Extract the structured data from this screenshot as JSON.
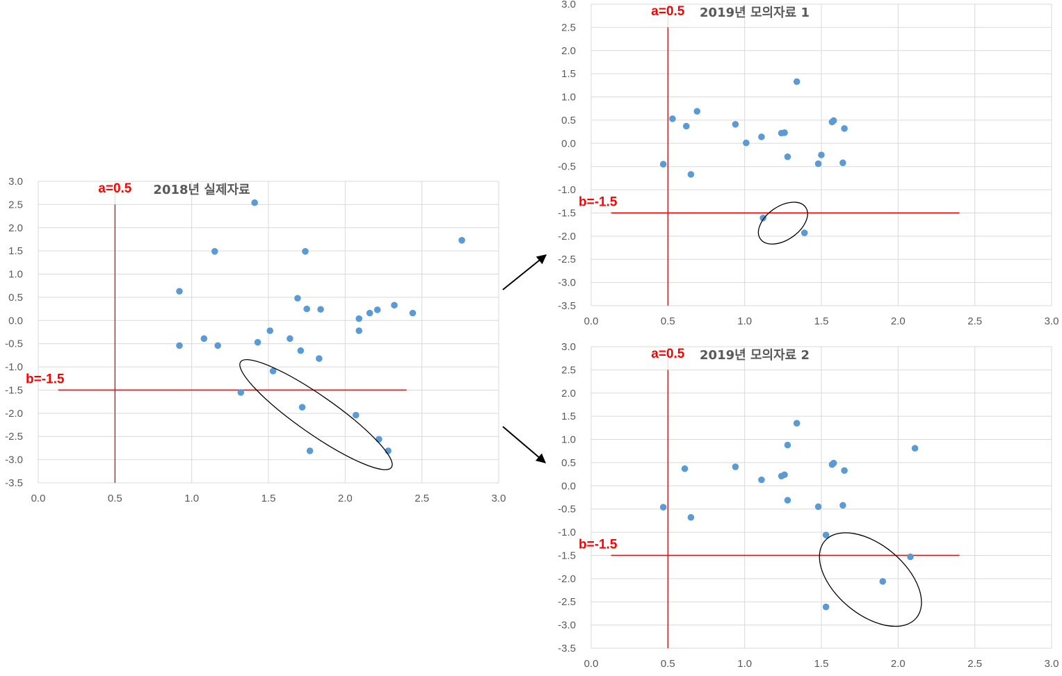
{
  "chart_data": [
    {
      "id": "c2018",
      "type": "scatter",
      "title": "2018년 실제자료",
      "xlim": [
        0,
        3
      ],
      "ylim": [
        -3.5,
        3
      ],
      "xticks": [
        "0.0",
        "0.5",
        "1.0",
        "1.5",
        "2.0",
        "2.5",
        "3.0"
      ],
      "yticks": [
        "3.0",
        "2.5",
        "2.0",
        "1.5",
        "1.0",
        "0.5",
        "0.0",
        "-0.5",
        "-1.0",
        "-1.5",
        "-2.0",
        "-2.5",
        "-3.0",
        "-3.5"
      ],
      "ref_a": {
        "label": "a=0.5",
        "x": 0.5
      },
      "ref_b": {
        "label": "b=-1.5",
        "y": -1.5,
        "x_from": 0.13,
        "x_to": 2.4
      },
      "point_color": "#5b9bd5",
      "points": [
        [
          0.92,
          0.63
        ],
        [
          0.92,
          -0.54
        ],
        [
          1.08,
          -0.39
        ],
        [
          1.15,
          1.49
        ],
        [
          1.17,
          -0.54
        ],
        [
          1.41,
          2.54
        ],
        [
          1.43,
          -0.47
        ],
        [
          1.51,
          -0.22
        ],
        [
          1.53,
          -1.09
        ],
        [
          1.32,
          -1.55
        ],
        [
          1.64,
          -0.39
        ],
        [
          1.69,
          0.48
        ],
        [
          1.71,
          -0.65
        ],
        [
          1.72,
          -1.87
        ],
        [
          1.74,
          1.49
        ],
        [
          1.75,
          0.25
        ],
        [
          1.77,
          -2.81
        ],
        [
          1.83,
          -0.82
        ],
        [
          1.84,
          0.24
        ],
        [
          2.07,
          -2.04
        ],
        [
          2.09,
          0.04
        ],
        [
          2.09,
          -0.22
        ],
        [
          2.16,
          0.16
        ],
        [
          2.21,
          0.23
        ],
        [
          2.22,
          -2.56
        ],
        [
          2.28,
          -2.81
        ],
        [
          2.32,
          0.33
        ],
        [
          2.44,
          0.16
        ],
        [
          2.76,
          1.73
        ]
      ],
      "ellipse": {
        "cx": 1.81,
        "cy": -2.03,
        "rx": 0.6,
        "ry": 0.41,
        "angle_deg": 35
      }
    },
    {
      "id": "c2019a",
      "type": "scatter",
      "title": "2019년 모의자료 1",
      "xlim": [
        0,
        3
      ],
      "ylim": [
        -3.5,
        3
      ],
      "xticks": [
        "0.0",
        "0.5",
        "1.0",
        "1.5",
        "2.0",
        "2.5",
        "3.0"
      ],
      "yticks": [
        "3.0",
        "2.5",
        "2.0",
        "1.5",
        "1.0",
        "0.5",
        "0.0",
        "-0.5",
        "-1.0",
        "-1.5",
        "-2.0",
        "-2.5",
        "-3.0",
        "-3.5"
      ],
      "ref_a": {
        "label": "a=0.5",
        "x": 0.5
      },
      "ref_b": {
        "label": "b=-1.5",
        "y": -1.5,
        "x_from": 0.13,
        "x_to": 2.4
      },
      "point_color": "#5b9bd5",
      "points": [
        [
          0.47,
          -0.45
        ],
        [
          0.53,
          0.53
        ],
        [
          0.62,
          0.37
        ],
        [
          0.65,
          -0.67
        ],
        [
          0.69,
          0.69
        ],
        [
          0.94,
          0.41
        ],
        [
          1.01,
          0.01
        ],
        [
          1.11,
          0.14
        ],
        [
          1.12,
          -1.61
        ],
        [
          1.24,
          0.22
        ],
        [
          1.26,
          0.23
        ],
        [
          1.28,
          -0.29
        ],
        [
          1.34,
          1.33
        ],
        [
          1.39,
          -1.93
        ],
        [
          1.48,
          -0.44
        ],
        [
          1.5,
          -0.25
        ],
        [
          1.57,
          0.46
        ],
        [
          1.58,
          0.49
        ],
        [
          1.64,
          -0.42
        ],
        [
          1.65,
          0.32
        ]
      ],
      "ellipse": {
        "cx": 1.25,
        "cy": -1.72,
        "rx": 0.18,
        "ry": 0.36,
        "angle_deg": -35
      }
    },
    {
      "id": "c2019b",
      "type": "scatter",
      "title": "2019년 모의자료 2",
      "xlim": [
        0,
        3
      ],
      "ylim": [
        -3.5,
        3
      ],
      "xticks": [
        "0.0",
        "0.5",
        "1.0",
        "1.5",
        "2.0",
        "2.5",
        "3.0"
      ],
      "yticks": [
        "3.0",
        "2.5",
        "2.0",
        "1.5",
        "1.0",
        "0.5",
        "0.0",
        "-0.5",
        "-1.0",
        "-1.5",
        "-2.0",
        "-2.5",
        "-3.0",
        "-3.5"
      ],
      "ref_a": {
        "label": "a=0.5",
        "x": 0.5
      },
      "ref_b": {
        "label": "b=-1.5",
        "y": -1.5,
        "x_from": 0.13,
        "x_to": 2.4
      },
      "point_color": "#5b9bd5",
      "points": [
        [
          0.47,
          -0.46
        ],
        [
          0.61,
          0.37
        ],
        [
          0.65,
          -0.68
        ],
        [
          0.94,
          0.41
        ],
        [
          1.11,
          0.13
        ],
        [
          1.24,
          0.21
        ],
        [
          1.26,
          0.24
        ],
        [
          1.28,
          -0.31
        ],
        [
          1.28,
          0.88
        ],
        [
          1.34,
          1.35
        ],
        [
          1.48,
          -0.45
        ],
        [
          1.53,
          -1.06
        ],
        [
          1.53,
          -2.61
        ],
        [
          1.57,
          0.46
        ],
        [
          1.58,
          0.49
        ],
        [
          1.64,
          -0.42
        ],
        [
          1.65,
          0.33
        ],
        [
          1.9,
          -2.06
        ],
        [
          2.08,
          -1.53
        ],
        [
          2.11,
          0.81
        ]
      ],
      "ellipse": {
        "cx": 1.82,
        "cy": -2.02,
        "rx": 0.39,
        "ry": 0.75,
        "angle_deg": 40
      }
    }
  ]
}
